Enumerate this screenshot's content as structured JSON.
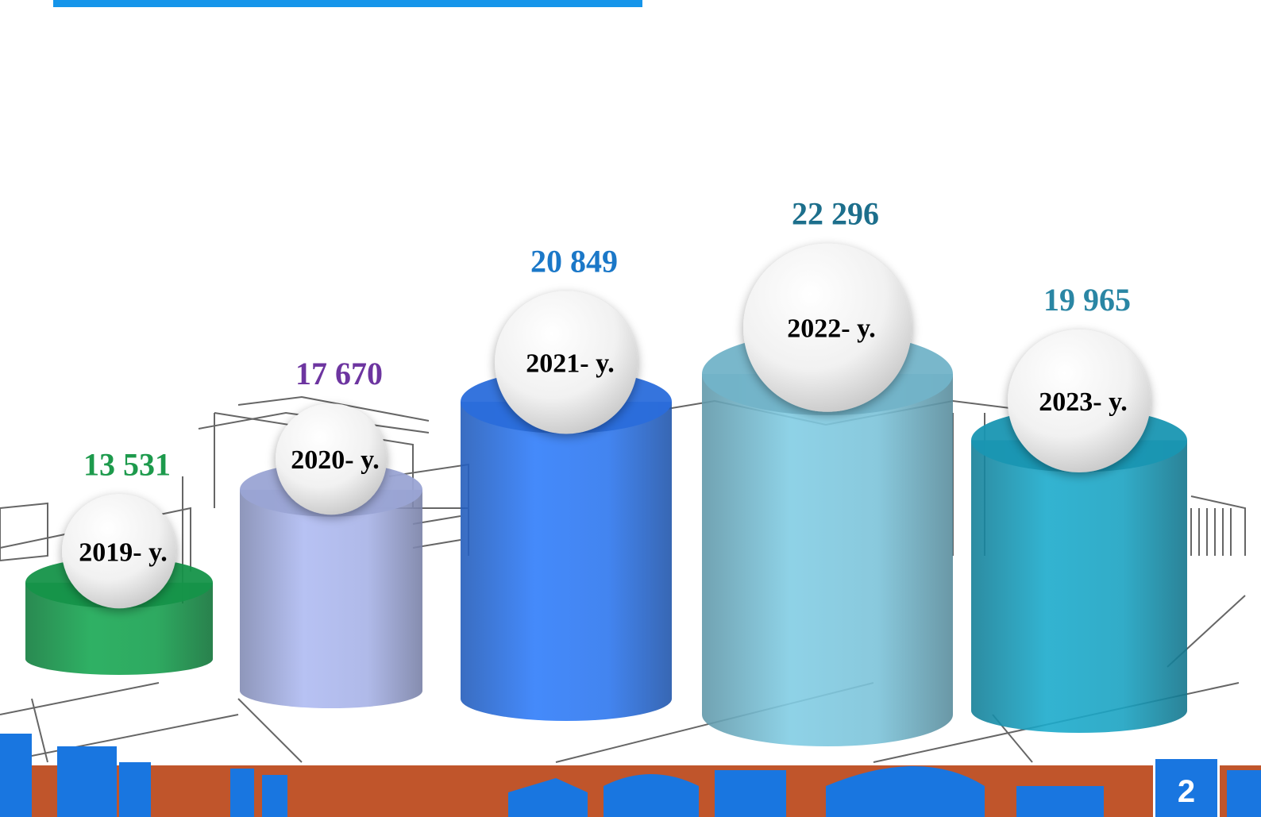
{
  "page": {
    "number": "2"
  },
  "colors": {
    "accent": "#1595ea",
    "skyline_blue": "#1976e0",
    "skyline_orange": "#c0552b"
  },
  "chart_data": {
    "type": "bar",
    "style": "3d-cylinders",
    "categories": [
      "2019- y.",
      "2020- y.",
      "2021- y.",
      "2022- y.",
      "2023- y."
    ],
    "values": [
      13531,
      17670,
      20849,
      22296,
      19965
    ],
    "value_labels": [
      "13 531",
      "17 670",
      "20 849",
      "22 296",
      "19 965"
    ],
    "bar_colors": [
      "#17a04f",
      "#a7b2e6",
      "#2e77ee",
      "#7cc3d9",
      "#1ba3c2"
    ],
    "label_colors": [
      "#1d9a4c",
      "#6d35a0",
      "#1b78c8",
      "#1d6f8c",
      "#2a86a4"
    ],
    "legend": false,
    "grid": false
  }
}
